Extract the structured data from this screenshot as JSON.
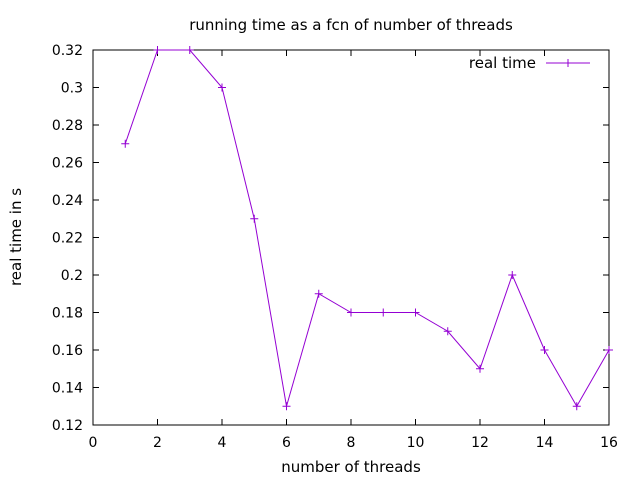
{
  "chart_data": {
    "type": "line",
    "title": "running time as a fcn of number of threads",
    "xlabel": "number of threads",
    "ylabel": "real time in s",
    "xlim": [
      0,
      16
    ],
    "ylim": [
      0.12,
      0.32
    ],
    "xticks": [
      0,
      2,
      4,
      6,
      8,
      10,
      12,
      14,
      16
    ],
    "yticks": [
      0.12,
      0.14,
      0.16,
      0.18,
      0.2,
      0.22,
      0.24,
      0.26,
      0.28,
      0.3,
      0.32
    ],
    "xtick_labels": [
      "0",
      "2",
      "4",
      "6",
      "8",
      "10",
      "12",
      "14",
      "16"
    ],
    "ytick_labels": [
      "0.12",
      "0.14",
      "0.16",
      "0.18",
      "0.2",
      "0.22",
      "0.24",
      "0.26",
      "0.28",
      "0.3",
      "0.32"
    ],
    "grid": false,
    "legend_position": "top-right",
    "series": [
      {
        "name": "real time",
        "color": "#9400d3",
        "marker": "plus",
        "x": [
          1,
          2,
          3,
          4,
          5,
          6,
          7,
          8,
          9,
          10,
          11,
          12,
          13,
          14,
          15,
          16
        ],
        "y": [
          0.27,
          0.32,
          0.32,
          0.3,
          0.23,
          0.13,
          0.19,
          0.18,
          0.18,
          0.18,
          0.17,
          0.15,
          0.2,
          0.16,
          0.13,
          0.16
        ]
      }
    ]
  }
}
